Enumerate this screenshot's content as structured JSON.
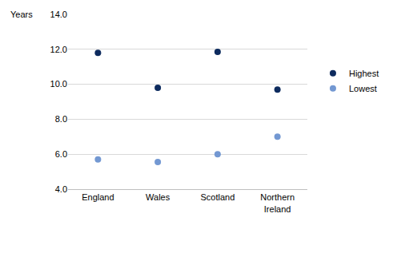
{
  "chart_data": {
    "type": "scatter",
    "ylabel": "Years",
    "categories": [
      "England",
      "Wales",
      "Scotland",
      "Northern Ireland"
    ],
    "series": [
      {
        "name": "Highest",
        "color": "#0d2b5e",
        "values": [
          11.8,
          9.8,
          11.85,
          9.7
        ]
      },
      {
        "name": "Lowest",
        "color": "#7398d2",
        "values": [
          5.7,
          5.55,
          6.0,
          7.0
        ]
      }
    ],
    "ylim": [
      4,
      14
    ],
    "yticks": [
      {
        "value": 4,
        "label": "4.0"
      },
      {
        "value": 6,
        "label": "6.0"
      },
      {
        "value": 8,
        "label": "8.0"
      },
      {
        "value": 10,
        "label": "10.0"
      },
      {
        "value": 12,
        "label": "12.0"
      },
      {
        "value": 14,
        "label": "14.0"
      }
    ],
    "grid": true,
    "legend": "right",
    "marker": "circle"
  }
}
